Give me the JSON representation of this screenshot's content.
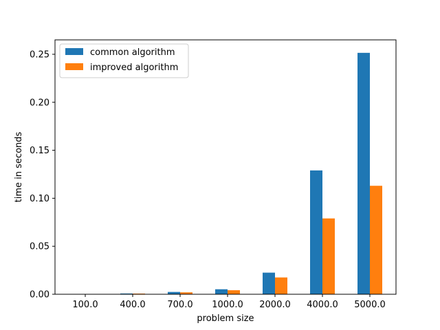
{
  "chart_data": {
    "type": "bar",
    "title": "",
    "xlabel": "problem size",
    "ylabel": "time in seconds",
    "categories": [
      "100.0",
      "400.0",
      "700.0",
      "1000.0",
      "2000.0",
      "4000.0",
      "5000.0"
    ],
    "series": [
      {
        "name": "common algorithm",
        "color": "#1f77b4",
        "values": [
          0.0001,
          0.0008,
          0.0024,
          0.0052,
          0.0225,
          0.129,
          0.2515
        ]
      },
      {
        "name": "improved algorithm",
        "color": "#ff7f0e",
        "values": [
          0.0001,
          0.0007,
          0.002,
          0.0042,
          0.0175,
          0.079,
          0.113
        ]
      }
    ],
    "ylim": [
      0,
      0.265
    ],
    "yticks": [
      "0.00",
      "0.05",
      "0.10",
      "0.15",
      "0.20",
      "0.25"
    ],
    "ytick_values": [
      0,
      0.05,
      0.1,
      0.15,
      0.2,
      0.25
    ],
    "grid": false,
    "legend_position": "top-left"
  }
}
